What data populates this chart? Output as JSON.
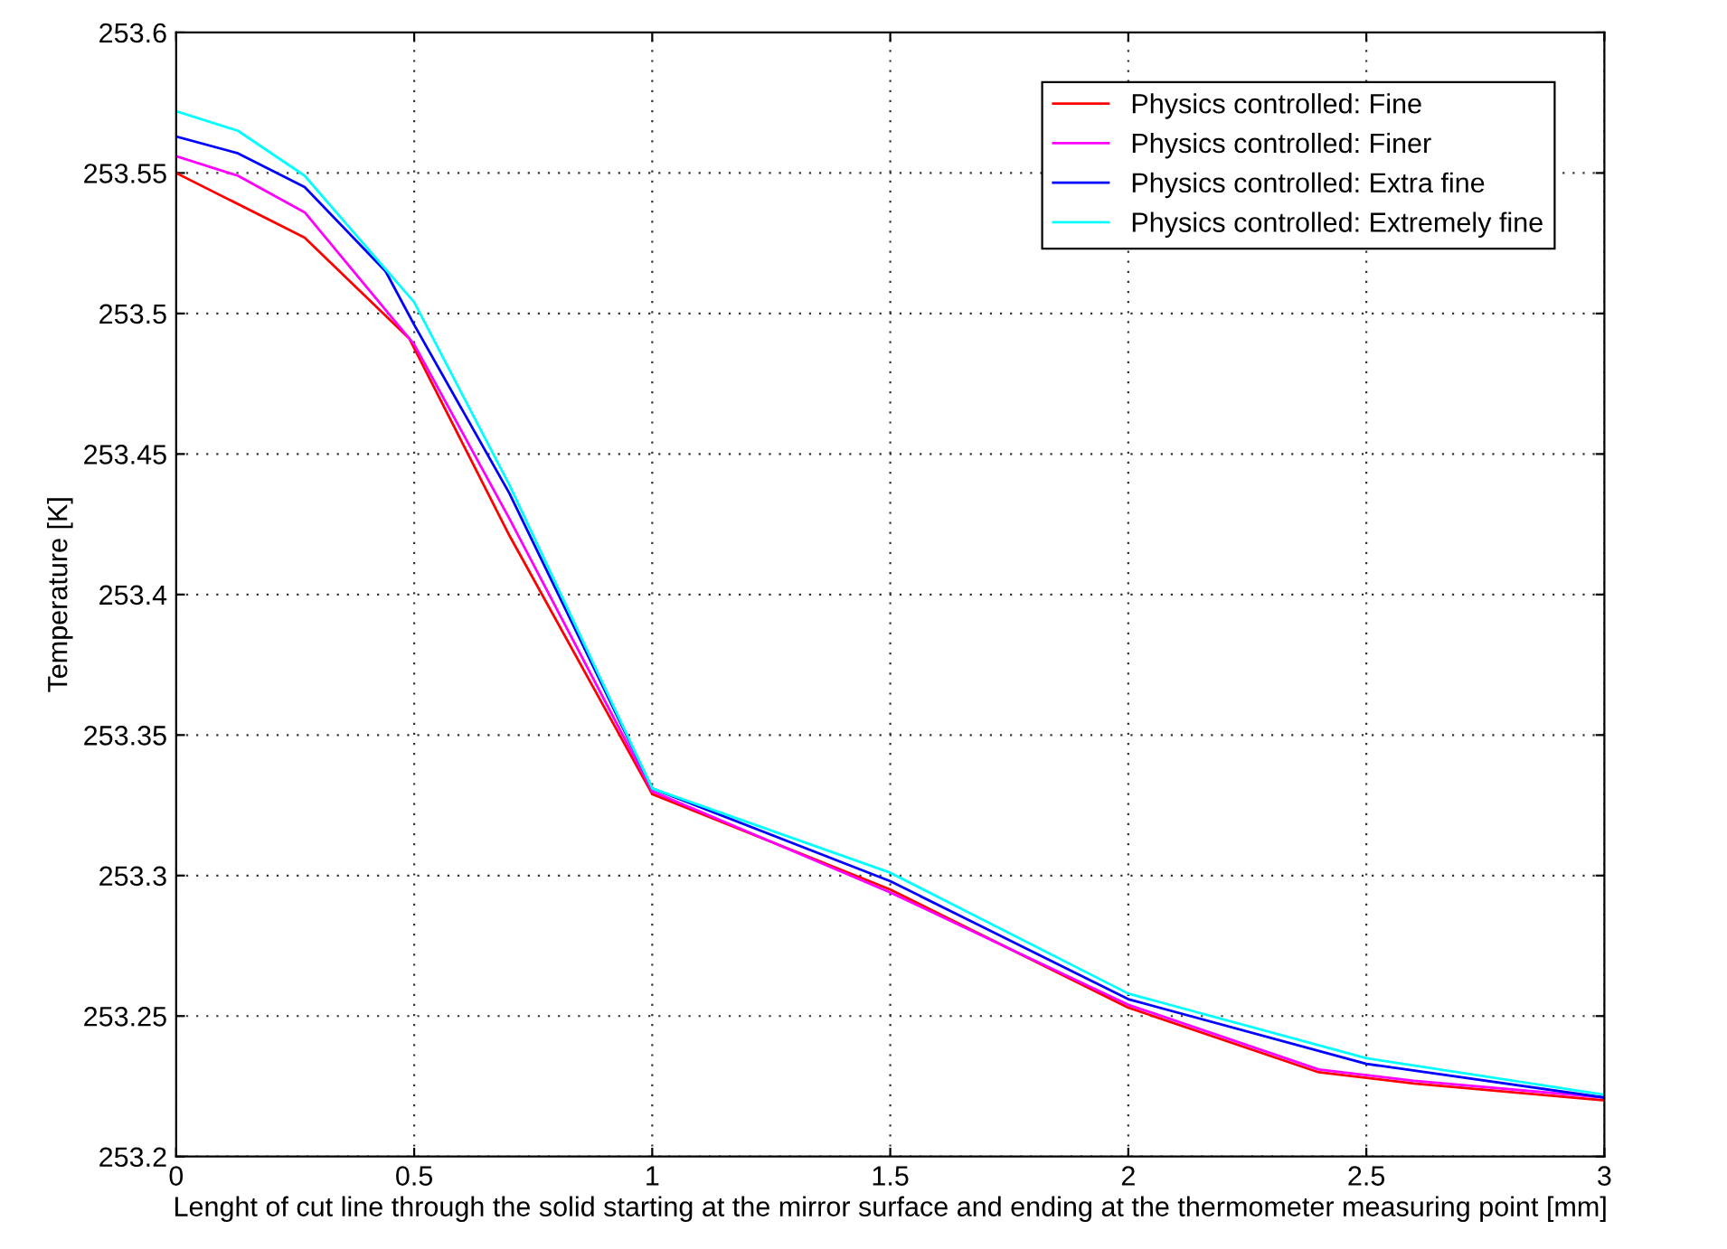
{
  "chart_data": {
    "type": "line",
    "xlabel": "Lenght of cut line through the solid starting at the mirror surface and ending at the thermometer measuring point [mm]",
    "ylabel": "Temperature [K]",
    "xlim": [
      0,
      3
    ],
    "xticks": [
      0,
      0.5,
      1,
      1.5,
      2,
      2.5,
      3
    ],
    "ylim": [
      253.2,
      253.6
    ],
    "yticks": [
      253.2,
      253.25,
      253.3,
      253.35,
      253.4,
      253.45,
      253.5,
      253.55,
      253.6
    ],
    "grid": true,
    "legend": "top right",
    "line_style": "solid",
    "marker": "none",
    "series": [
      {
        "name": "Physics controlled: Fine",
        "color": "#ff0000",
        "x": [
          0,
          0.27,
          0.49,
          0.7,
          1,
          1.5,
          2,
          2.4,
          2.6,
          3
        ],
        "values": [
          253.55,
          253.527,
          253.491,
          253.421,
          253.329,
          253.295,
          253.253,
          253.23,
          253.226,
          253.22
        ]
      },
      {
        "name": "Physics controlled: Finer",
        "color": "#ff00ff",
        "x": [
          0,
          0.13,
          0.27,
          0.5,
          0.7,
          1,
          1.5,
          2,
          2.4,
          2.6,
          3
        ],
        "values": [
          253.556,
          253.549,
          253.536,
          253.489,
          253.427,
          253.33,
          253.294,
          253.254,
          253.231,
          253.227,
          253.221
        ]
      },
      {
        "name": "Physics controlled: Extra fine",
        "color": "#0000ff",
        "x": [
          0,
          0.13,
          0.27,
          0.44,
          0.5,
          0.7,
          1,
          1.5,
          2,
          2.5,
          3
        ],
        "values": [
          253.563,
          253.557,
          253.545,
          253.515,
          253.496,
          253.436,
          253.331,
          253.298,
          253.256,
          253.233,
          253.221
        ]
      },
      {
        "name": "Physics controlled: Extremely fine",
        "color": "#00ffff",
        "x": [
          0,
          0.13,
          0.27,
          0.5,
          0.7,
          1,
          1.5,
          2,
          2.5,
          3
        ],
        "values": [
          253.572,
          253.565,
          253.549,
          253.504,
          253.439,
          253.331,
          253.301,
          253.258,
          253.235,
          253.222
        ]
      }
    ]
  }
}
